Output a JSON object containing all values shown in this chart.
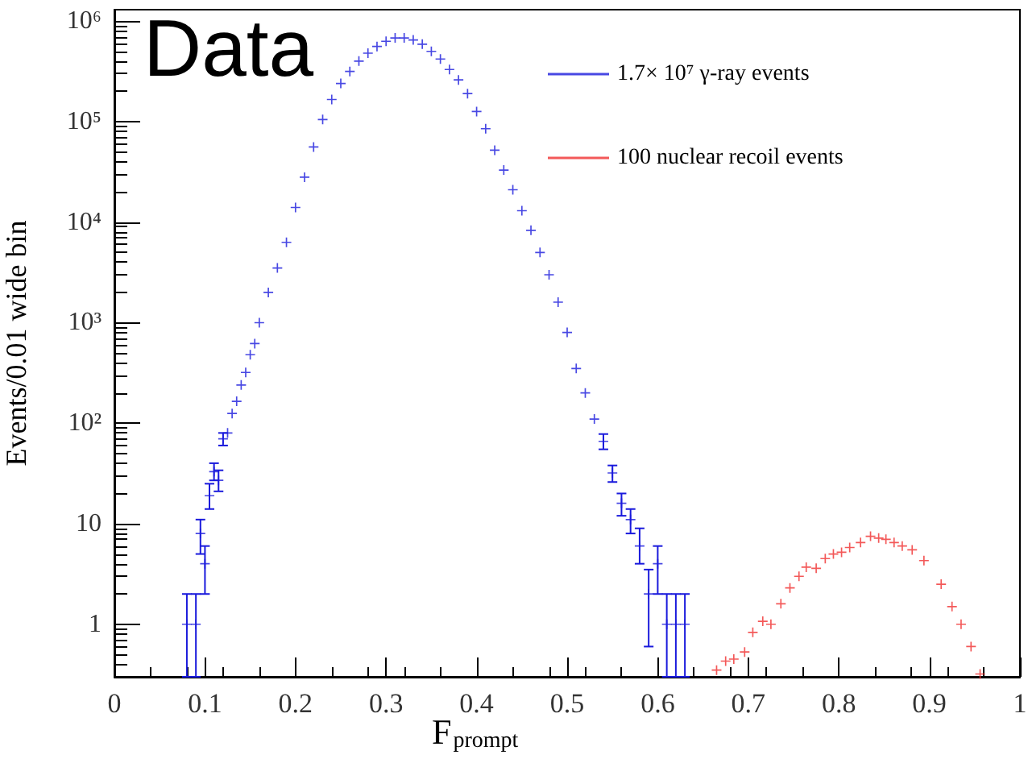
{
  "chart_data": {
    "type": "scatter",
    "title": "Data",
    "xlabel": "F$_{prompt}$",
    "ylabel": "Events/0.01 wide bin",
    "log": "y",
    "grid": false,
    "legend": "top right",
    "marker": "cross",
    "xlim": [
      0,
      1
    ],
    "xticks": [
      0,
      0.1,
      0.2,
      0.3,
      0.4,
      0.5,
      0.6,
      0.7,
      0.8,
      0.9,
      1
    ],
    "ylim": [
      0.3,
      1300000
    ],
    "yticks": [
      {
        "value": 1,
        "label": "1"
      },
      {
        "value": 10,
        "label": "10"
      },
      {
        "value": 100,
        "label": "10²"
      },
      {
        "value": 1000,
        "label": "10³"
      },
      {
        "value": 10000,
        "label": "10⁴"
      },
      {
        "value": 100000,
        "label": "10⁵"
      },
      {
        "value": 1000000,
        "label": "10⁶"
      }
    ],
    "series": [
      {
        "name": "1.7× 10⁷ γ-ray events",
        "color": "#1a1adc",
        "x": [
          0.08,
          0.09,
          0.095,
          0.1,
          0.105,
          0.11,
          0.115,
          0.12,
          0.125,
          0.13,
          0.135,
          0.14,
          0.145,
          0.15,
          0.155,
          0.16,
          0.17,
          0.18,
          0.19,
          0.2,
          0.21,
          0.22,
          0.23,
          0.24,
          0.25,
          0.26,
          0.27,
          0.28,
          0.29,
          0.3,
          0.31,
          0.32,
          0.33,
          0.34,
          0.35,
          0.36,
          0.37,
          0.38,
          0.39,
          0.4,
          0.41,
          0.42,
          0.43,
          0.44,
          0.45,
          0.46,
          0.47,
          0.48,
          0.49,
          0.5,
          0.51,
          0.52,
          0.53,
          0.54,
          0.55,
          0.56,
          0.57,
          0.58,
          0.59,
          0.6,
          0.61,
          0.62,
          0.63
        ],
        "values": [
          1,
          1,
          8,
          4,
          19,
          33,
          27,
          70,
          80,
          125,
          165,
          240,
          320,
          480,
          620,
          1000,
          2000,
          3500,
          6300,
          14000,
          28000,
          56000,
          105000,
          166000,
          240000,
          316000,
          400000,
          480000,
          560000,
          630000,
          680000,
          680000,
          650000,
          590000,
          500000,
          420000,
          330000,
          260000,
          190000,
          126000,
          85000,
          52000,
          33000,
          21000,
          13000,
          8300,
          5000,
          3000,
          1600,
          800,
          350,
          200,
          110,
          66,
          32,
          16,
          11,
          6,
          2,
          4,
          1,
          1,
          1
        ],
        "errors": [
          [
            0.3,
            2
          ],
          [
            0.3,
            2
          ],
          [
            5,
            11
          ],
          [
            2,
            6
          ],
          [
            14,
            25
          ],
          [
            27,
            40
          ],
          [
            21,
            34
          ],
          [
            60,
            80
          ],
          null,
          null,
          null,
          null,
          null,
          null,
          null,
          null,
          null,
          null,
          null,
          null,
          null,
          null,
          null,
          null,
          null,
          null,
          null,
          null,
          null,
          null,
          null,
          null,
          null,
          null,
          null,
          null,
          null,
          null,
          null,
          null,
          null,
          null,
          null,
          null,
          null,
          null,
          null,
          null,
          null,
          null,
          null,
          null,
          null,
          [
            55,
            78
          ],
          [
            26,
            38
          ],
          [
            12,
            20
          ],
          [
            8,
            14
          ],
          [
            4,
            9
          ],
          [
            0.6,
            3.5
          ],
          [
            2,
            6
          ],
          [
            0.3,
            2
          ],
          [
            0.3,
            2
          ],
          [
            0.3,
            2
          ]
        ]
      },
      {
        "name": "100 nuclear recoil events",
        "color": "#f03030",
        "x": [
          0.665,
          0.675,
          0.684,
          0.696,
          0.705,
          0.716,
          0.725,
          0.736,
          0.746,
          0.756,
          0.764,
          0.775,
          0.785,
          0.794,
          0.803,
          0.812,
          0.824,
          0.835,
          0.844,
          0.852,
          0.861,
          0.87,
          0.881,
          0.894,
          0.913,
          0.925,
          0.935,
          0.946,
          0.956
        ],
        "values": [
          0.35,
          0.43,
          0.45,
          0.53,
          0.83,
          1.07,
          1.0,
          1.6,
          2.3,
          3.0,
          3.7,
          3.6,
          4.5,
          5.0,
          5.2,
          5.8,
          6.5,
          7.5,
          7.2,
          7.0,
          6.5,
          6.0,
          5.5,
          4.3,
          2.5,
          1.5,
          1.0,
          0.6,
          0.32
        ]
      }
    ]
  }
}
